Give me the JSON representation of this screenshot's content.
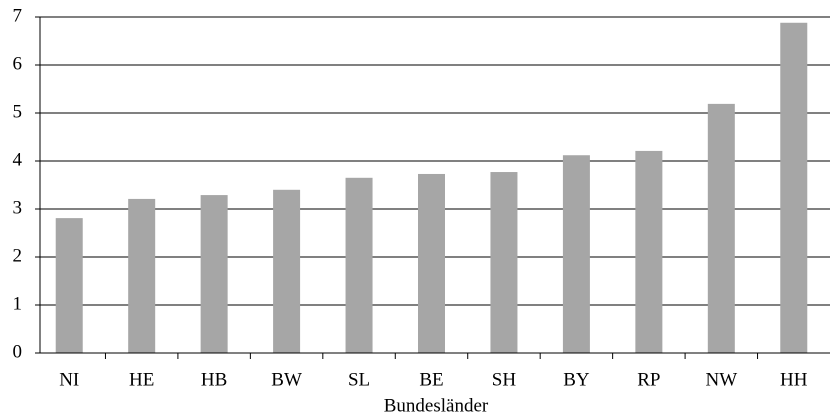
{
  "chart_data": {
    "type": "bar",
    "xlabel": "Bundesländer",
    "categories": [
      "NI",
      "HE",
      "HB",
      "BW",
      "SL",
      "BE",
      "SH",
      "BY",
      "RP",
      "NW",
      "HH"
    ],
    "values": [
      2.81,
      3.21,
      3.29,
      3.4,
      3.65,
      3.73,
      3.77,
      4.12,
      4.21,
      5.19,
      6.88
    ],
    "color": "#a6a6a6",
    "ylim": [
      0,
      7
    ],
    "yticks": [
      0,
      1,
      2,
      3,
      4,
      5,
      6,
      7
    ],
    "grid": true
  }
}
